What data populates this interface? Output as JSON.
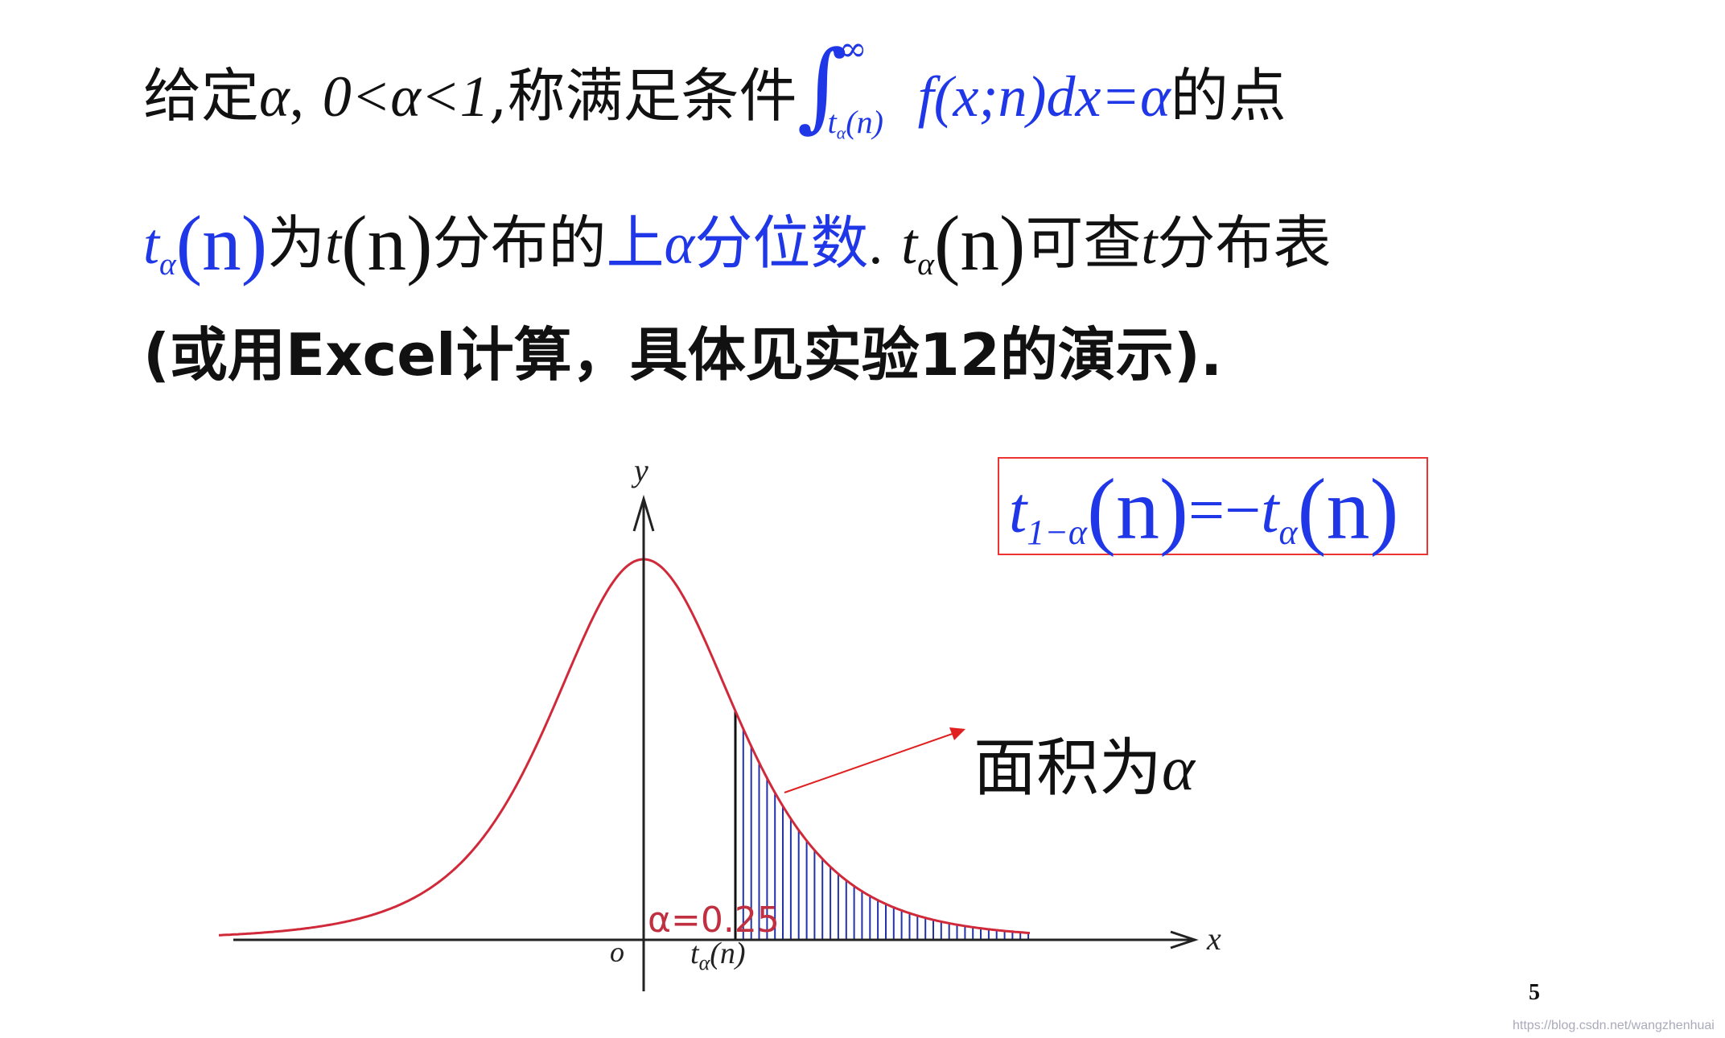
{
  "line1": {
    "prefix": "给定",
    "alpha": "α",
    "comma": ",",
    "condition": "0<α<1",
    "mid": ",称满足条件",
    "int_upper": "∞",
    "int_lower_t": "t",
    "int_lower_sub": "α",
    "int_lower_arg": "(n)",
    "integrand": "f(x;n)dx=α",
    "suffix": "的点"
  },
  "line2": {
    "t": "t",
    "t_sub": "α",
    "t_arg": "(n)",
    "is_text": "为",
    "dist_t": "t",
    "dist_arg": "(n)",
    "dist_text": "分布的",
    "highlight_pre": "上",
    "highlight_alpha": "α",
    "highlight_post": "分位数",
    "period": ".",
    "t2": "t",
    "t2_sub": "α",
    "t2_arg": "(n)",
    "lookup_text": "可查",
    "lookup_t": "t",
    "table_text": "分布表"
  },
  "line3": {
    "text": "(或用Excel计算，具体见实验12的演示)."
  },
  "identity": {
    "t1": "t",
    "t1_sub": "1−α",
    "t1_arg": "(n)",
    "eq": "=−",
    "t2": "t",
    "t2_sub": "α",
    "t2_arg": "(n)"
  },
  "area_label": {
    "text": "面积为",
    "alpha": "α"
  },
  "graph": {
    "y_label": "y",
    "x_label": "x",
    "origin_label": "o",
    "tick_t": "t",
    "tick_sub": "α",
    "tick_arg": "(n)",
    "alpha_value": "α=0.25",
    "curve_color": "#d02a3a",
    "fill_color": "#2233aa",
    "arrow_color": "#e02020"
  },
  "chart_data": {
    "type": "area",
    "xlabel": "x",
    "ylabel": "y",
    "series": [
      {
        "values": []
      }
    ],
    "shaded_region": {
      "from": "tα(n)",
      "to": "∞",
      "area": 0.25
    }
  },
  "footer": {
    "page_number": "5",
    "watermark": "https://blog.csdn.net/wangzhenhuai"
  }
}
